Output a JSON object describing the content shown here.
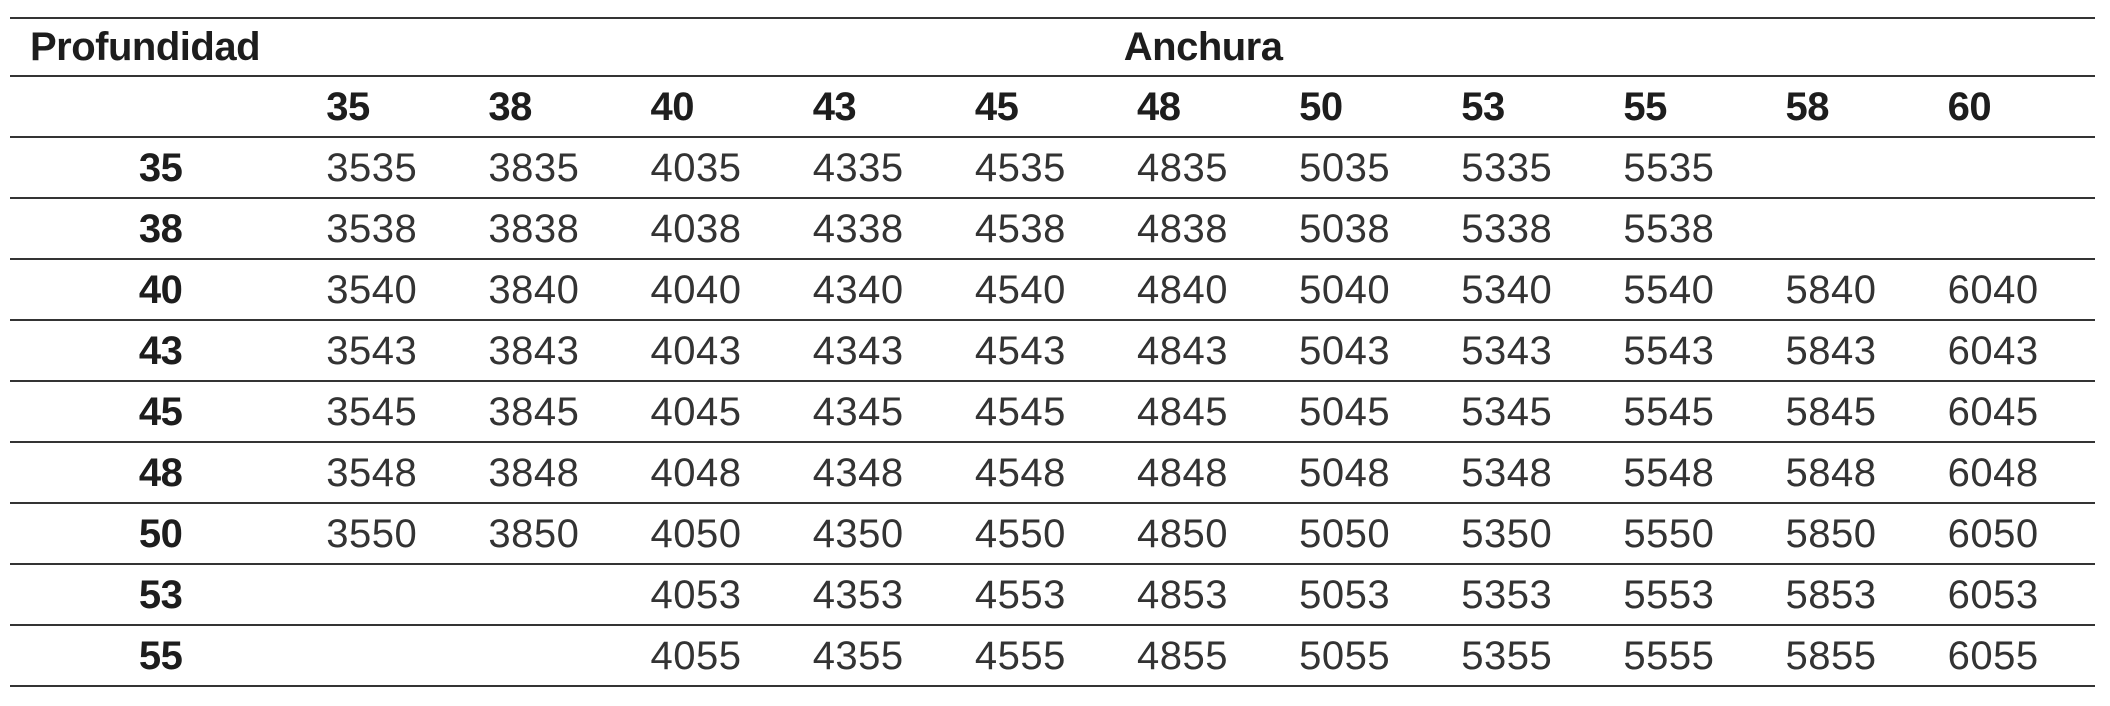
{
  "table": {
    "row_axis_label": "Profundidad",
    "col_axis_label": "Anchura",
    "columns": [
      "35",
      "38",
      "40",
      "43",
      "45",
      "48",
      "50",
      "53",
      "55",
      "58",
      "60"
    ],
    "rows": [
      {
        "label": "35",
        "cells": [
          "3535",
          "3835",
          "4035",
          "4335",
          "4535",
          "4835",
          "5035",
          "5335",
          "5535",
          "",
          ""
        ]
      },
      {
        "label": "38",
        "cells": [
          "3538",
          "3838",
          "4038",
          "4338",
          "4538",
          "4838",
          "5038",
          "5338",
          "5538",
          "",
          ""
        ]
      },
      {
        "label": "40",
        "cells": [
          "3540",
          "3840",
          "4040",
          "4340",
          "4540",
          "4840",
          "5040",
          "5340",
          "5540",
          "5840",
          "6040"
        ]
      },
      {
        "label": "43",
        "cells": [
          "3543",
          "3843",
          "4043",
          "4343",
          "4543",
          "4843",
          "5043",
          "5343",
          "5543",
          "5843",
          "6043"
        ]
      },
      {
        "label": "45",
        "cells": [
          "3545",
          "3845",
          "4045",
          "4345",
          "4545",
          "4845",
          "5045",
          "5345",
          "5545",
          "5845",
          "6045"
        ]
      },
      {
        "label": "48",
        "cells": [
          "3548",
          "3848",
          "4048",
          "4348",
          "4548",
          "4848",
          "5048",
          "5348",
          "5548",
          "5848",
          "6048"
        ]
      },
      {
        "label": "50",
        "cells": [
          "3550",
          "3850",
          "4050",
          "4350",
          "4550",
          "4850",
          "5050",
          "5350",
          "5550",
          "5850",
          "6050"
        ]
      },
      {
        "label": "53",
        "cells": [
          "",
          "",
          "4053",
          "4353",
          "4553",
          "4853",
          "5053",
          "5353",
          "5553",
          "5853",
          "6053"
        ]
      },
      {
        "label": "55",
        "cells": [
          "",
          "",
          "4055",
          "4355",
          "4555",
          "4855",
          "5055",
          "5355",
          "5555",
          "5855",
          "6055"
        ]
      }
    ]
  },
  "chart_data": {
    "type": "table",
    "title": "",
    "row_axis_label": "Profundidad",
    "col_axis_label": "Anchura",
    "columns": [
      35,
      38,
      40,
      43,
      45,
      48,
      50,
      53,
      55,
      58,
      60
    ],
    "row_labels": [
      35,
      38,
      40,
      43,
      45,
      48,
      50,
      53,
      55
    ],
    "values": [
      [
        3535,
        3835,
        4035,
        4335,
        4535,
        4835,
        5035,
        5335,
        5535,
        null,
        null
      ],
      [
        3538,
        3838,
        4038,
        4338,
        4538,
        4838,
        5038,
        5338,
        5538,
        null,
        null
      ],
      [
        3540,
        3840,
        4040,
        4340,
        4540,
        4840,
        5040,
        5340,
        5540,
        5840,
        6040
      ],
      [
        3543,
        3843,
        4043,
        4343,
        4543,
        4843,
        5043,
        5343,
        5543,
        5843,
        6043
      ],
      [
        3545,
        3845,
        4045,
        4345,
        4545,
        4845,
        5045,
        5345,
        5545,
        5845,
        6045
      ],
      [
        3548,
        3848,
        4048,
        4348,
        4548,
        4848,
        5048,
        5348,
        5548,
        5848,
        6048
      ],
      [
        3550,
        3850,
        4050,
        4350,
        4550,
        4850,
        5050,
        5350,
        5550,
        5850,
        6050
      ],
      [
        null,
        null,
        4053,
        4353,
        4553,
        4853,
        5053,
        5353,
        5553,
        5853,
        6053
      ],
      [
        null,
        null,
        4055,
        4355,
        4555,
        4855,
        5055,
        5355,
        5555,
        5855,
        6055
      ]
    ],
    "layout": {
      "grid": "horizontal-lines-only",
      "header_bold": true,
      "row_labels_bold": true
    }
  }
}
